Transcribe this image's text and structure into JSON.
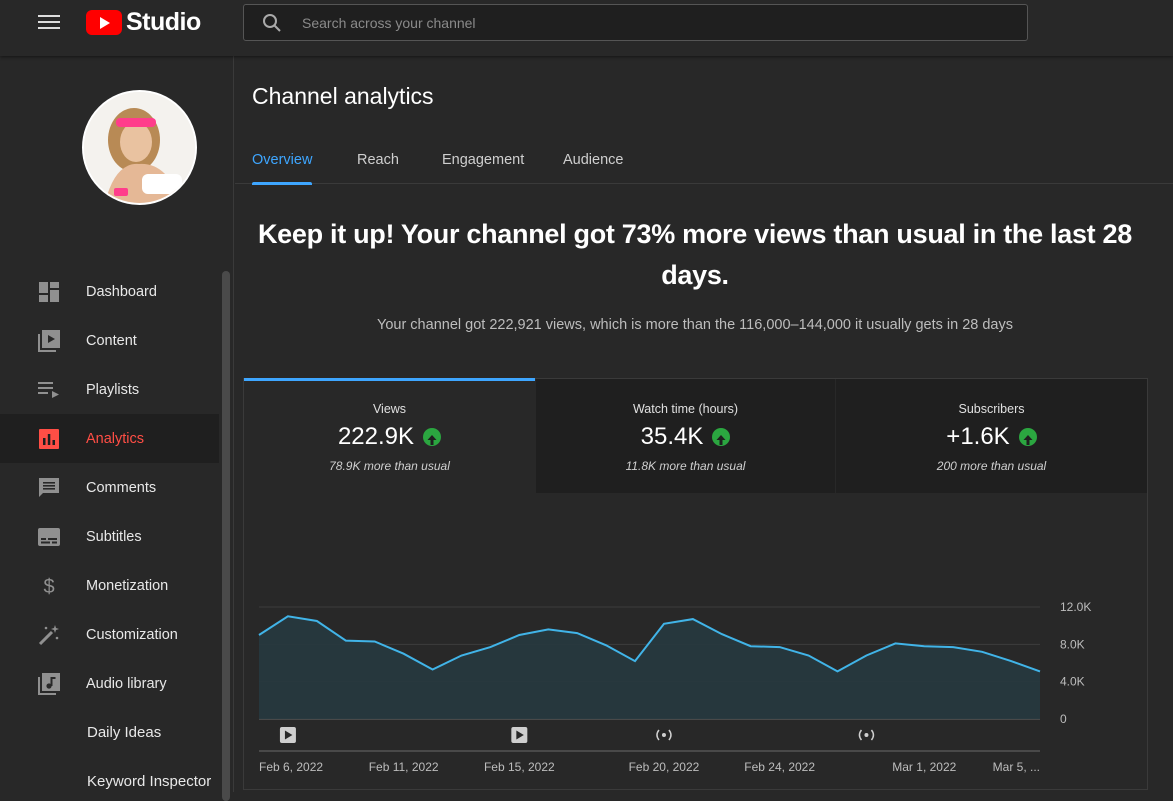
{
  "topbar": {
    "app_name": "Studio",
    "search_placeholder": "Search across your channel"
  },
  "sidebar": {
    "items": [
      {
        "label": "Dashboard",
        "icon": "dashboard-icon"
      },
      {
        "label": "Content",
        "icon": "content-icon"
      },
      {
        "label": "Playlists",
        "icon": "playlists-icon"
      },
      {
        "label": "Analytics",
        "icon": "analytics-icon",
        "active": true
      },
      {
        "label": "Comments",
        "icon": "comments-icon"
      },
      {
        "label": "Subtitles",
        "icon": "subtitles-icon"
      },
      {
        "label": "Monetization",
        "icon": "dollar-icon"
      },
      {
        "label": "Customization",
        "icon": "magic-wand-icon"
      },
      {
        "label": "Audio library",
        "icon": "audio-library-icon"
      }
    ],
    "extra_links": [
      "Daily Ideas",
      "Keyword Inspector"
    ]
  },
  "main": {
    "title": "Channel analytics",
    "tabs": [
      "Overview",
      "Reach",
      "Engagement",
      "Audience"
    ],
    "active_tab": "Overview",
    "headline": "Keep it up! Your channel got 73% more views than usual in the last 28 days.",
    "subline": "Your channel got 222,921 views, which is more than the 116,000–144,000 it usually gets in 28 days"
  },
  "metrics": [
    {
      "label": "Views",
      "value": "222.9K",
      "note": "78.9K more than usual",
      "trend": "up"
    },
    {
      "label": "Watch time (hours)",
      "value": "35.4K",
      "note": "11.8K more than usual",
      "trend": "up"
    },
    {
      "label": "Subscribers",
      "value": "+1.6K",
      "note": "200 more than usual",
      "trend": "up"
    }
  ],
  "colors": {
    "accent": "#3ea6ff",
    "active_nav": "#ff4e45",
    "positive": "#2ba640",
    "brand": "#ff0000"
  },
  "chart_data": {
    "type": "area",
    "series": [
      {
        "name": "Views",
        "values": [
          9000,
          11000,
          10500,
          8400,
          8300,
          7000,
          5300,
          6800,
          7700,
          9000,
          9600,
          9200,
          7900,
          6200,
          10200,
          10700,
          9100,
          7800,
          7700,
          6800,
          5100,
          6800,
          8100,
          7800,
          7700,
          7200,
          6200,
          5100
        ]
      }
    ],
    "x_labels": [
      "Feb 6, 2022",
      "Feb 11, 2022",
      "Feb 15, 2022",
      "Feb 20, 2022",
      "Feb 24, 2022",
      "Mar 1, 2022",
      "Mar 5, ..."
    ],
    "x_label_index": [
      0,
      5,
      9,
      14,
      18,
      23,
      27
    ],
    "y_ticks": [
      {
        "value": 0,
        "label": "0"
      },
      {
        "value": 4000,
        "label": "4.0K"
      },
      {
        "value": 8000,
        "label": "8.0K"
      },
      {
        "value": 12000,
        "label": "12.0K"
      }
    ],
    "ylim": [
      0,
      12000
    ],
    "markers": [
      {
        "index": 1,
        "kind": "video"
      },
      {
        "index": 9,
        "kind": "video"
      },
      {
        "index": 14,
        "kind": "live"
      },
      {
        "index": 21,
        "kind": "live"
      }
    ],
    "grid": true
  }
}
